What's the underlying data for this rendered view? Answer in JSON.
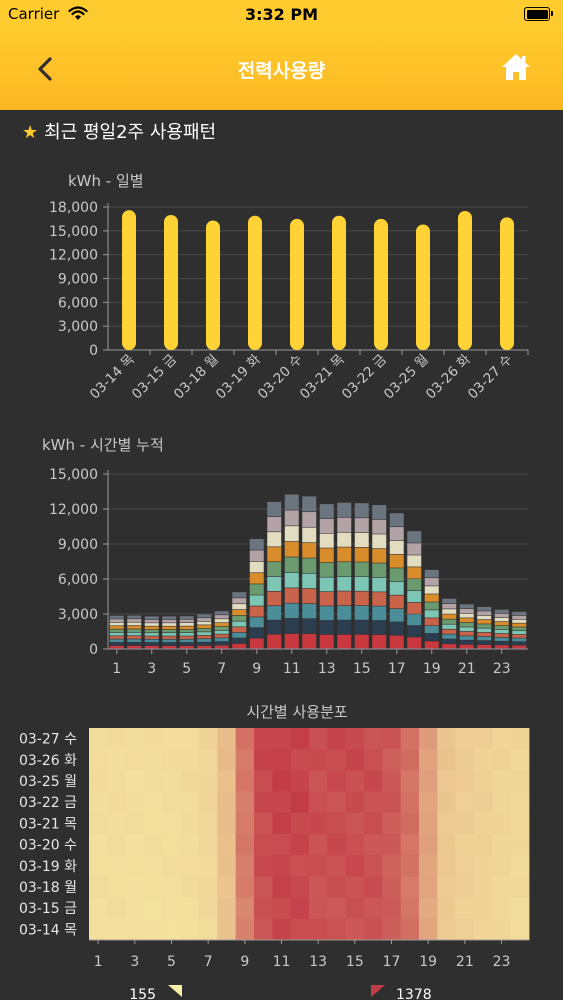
{
  "status": {
    "carrier": "Carrier",
    "time": "3:32 PM"
  },
  "nav": {
    "title": "전력사용량"
  },
  "section": {
    "title": "최근 평일2주 사용패턴"
  },
  "colors": {
    "accent": "#ffcb2e",
    "background": "#2f2f2f",
    "bar": "#ffd236",
    "heat_low": "#f8f0a6",
    "heat_high": "#c33c48"
  },
  "icons": {
    "back": "chevron-left-icon",
    "home": "home-icon",
    "star": "star-icon",
    "wifi": "wifi-icon",
    "battery": "battery-icon"
  },
  "chart_data": [
    {
      "type": "bar",
      "title": "kWh - 일별",
      "categories": [
        "03-14 목",
        "03-15 금",
        "03-18 월",
        "03-19 화",
        "03-20 수",
        "03-21 목",
        "03-22 금",
        "03-25 월",
        "03-26 화",
        "03-27 수"
      ],
      "values": [
        17600,
        17000,
        16300,
        16900,
        16500,
        16900,
        16500,
        15800,
        17500,
        16700
      ],
      "ylim": [
        0,
        18000
      ],
      "yticks": [
        "0",
        "3,000",
        "6,000",
        "9,000",
        "12,000",
        "15,000",
        "18,000"
      ],
      "grid": true
    },
    {
      "type": "bar",
      "stacked": true,
      "title": "kWh - 시간별 누적",
      "categories": [
        "1",
        "2",
        "3",
        "4",
        "5",
        "6",
        "7",
        "8",
        "9",
        "10",
        "11",
        "12",
        "13",
        "14",
        "15",
        "16",
        "17",
        "18",
        "19",
        "20",
        "21",
        "22",
        "23",
        "24"
      ],
      "xticks": [
        "1",
        "3",
        "5",
        "7",
        "9",
        "11",
        "13",
        "15",
        "17",
        "19",
        "21",
        "23"
      ],
      "ylim": [
        0,
        15000
      ],
      "yticks": [
        "0",
        "3,000",
        "6,000",
        "9,000",
        "12,000",
        "15,000"
      ],
      "grid": true,
      "series_colors": [
        "#c8383e",
        "#2c3d4f",
        "#4b8e9a",
        "#c9634a",
        "#7dc5b4",
        "#6a9a6e",
        "#d98c2a",
        "#e2ddc0",
        "#b3a3a6",
        "#6b7580"
      ],
      "series": [
        {
          "values": [
            270,
            270,
            265,
            265,
            265,
            275,
            300,
            450,
            900,
            1240,
            1300,
            1290,
            1220,
            1230,
            1230,
            1210,
            1160,
            1000,
            660,
            420,
            370,
            350,
            320,
            300
          ]
        },
        {
          "values": [
            275,
            280,
            270,
            270,
            270,
            285,
            310,
            470,
            900,
            1210,
            1300,
            1280,
            1200,
            1220,
            1220,
            1210,
            1130,
            980,
            650,
            410,
            360,
            340,
            320,
            300
          ]
        },
        {
          "values": [
            280,
            280,
            275,
            275,
            275,
            290,
            320,
            470,
            920,
            1230,
            1300,
            1290,
            1240,
            1240,
            1240,
            1230,
            1140,
            990,
            660,
            420,
            370,
            350,
            330,
            310
          ]
        },
        {
          "values": [
            280,
            285,
            275,
            275,
            280,
            295,
            320,
            480,
            940,
            1240,
            1310,
            1300,
            1230,
            1250,
            1240,
            1220,
            1160,
            1000,
            670,
            420,
            380,
            360,
            330,
            310
          ]
        },
        {
          "values": [
            285,
            285,
            280,
            280,
            280,
            295,
            320,
            490,
            940,
            1260,
            1320,
            1300,
            1240,
            1250,
            1250,
            1230,
            1160,
            1010,
            680,
            430,
            380,
            360,
            340,
            320
          ]
        },
        {
          "values": [
            285,
            290,
            280,
            280,
            285,
            300,
            330,
            490,
            950,
            1270,
            1330,
            1310,
            1250,
            1260,
            1250,
            1240,
            1170,
            1010,
            680,
            430,
            390,
            360,
            340,
            320
          ]
        },
        {
          "values": [
            290,
            290,
            285,
            285,
            285,
            300,
            330,
            500,
            960,
            1280,
            1330,
            1320,
            1250,
            1260,
            1260,
            1240,
            1170,
            1020,
            690,
            440,
            390,
            370,
            340,
            330
          ]
        },
        {
          "values": [
            290,
            290,
            285,
            285,
            290,
            305,
            330,
            500,
            970,
            1290,
            1340,
            1320,
            1260,
            1270,
            1260,
            1250,
            1180,
            1020,
            690,
            440,
            390,
            370,
            350,
            330
          ]
        },
        {
          "values": [
            295,
            295,
            290,
            290,
            290,
            305,
            340,
            510,
            970,
            1290,
            1350,
            1330,
            1260,
            1280,
            1270,
            1250,
            1180,
            1030,
            700,
            450,
            400,
            370,
            350,
            330
          ]
        },
        {
          "values": [
            300,
            300,
            295,
            295,
            295,
            310,
            340,
            510,
            980,
            1300,
            1360,
            1340,
            1270,
            1280,
            1280,
            1260,
            1190,
            1040,
            700,
            450,
            400,
            380,
            350,
            340
          ]
        }
      ]
    },
    {
      "type": "heatmap",
      "title": "시간별 사용분포",
      "rows": [
        "03-27 수",
        "03-26 화",
        "03-25 월",
        "03-22 금",
        "03-21 목",
        "03-20 수",
        "03-19 화",
        "03-18 월",
        "03-15 금",
        "03-14 목"
      ],
      "columns": [
        "1",
        "2",
        "3",
        "4",
        "5",
        "6",
        "7",
        "8",
        "9",
        "10",
        "11",
        "12",
        "13",
        "14",
        "15",
        "16",
        "17",
        "18",
        "19",
        "20",
        "21",
        "22",
        "23",
        "24"
      ],
      "xticks": [
        "1",
        "3",
        "5",
        "7",
        "9",
        "11",
        "13",
        "15",
        "17",
        "19",
        "21",
        "23"
      ],
      "min": 155,
      "max": 1378,
      "min_label": "155",
      "max_label": "1378"
    }
  ]
}
